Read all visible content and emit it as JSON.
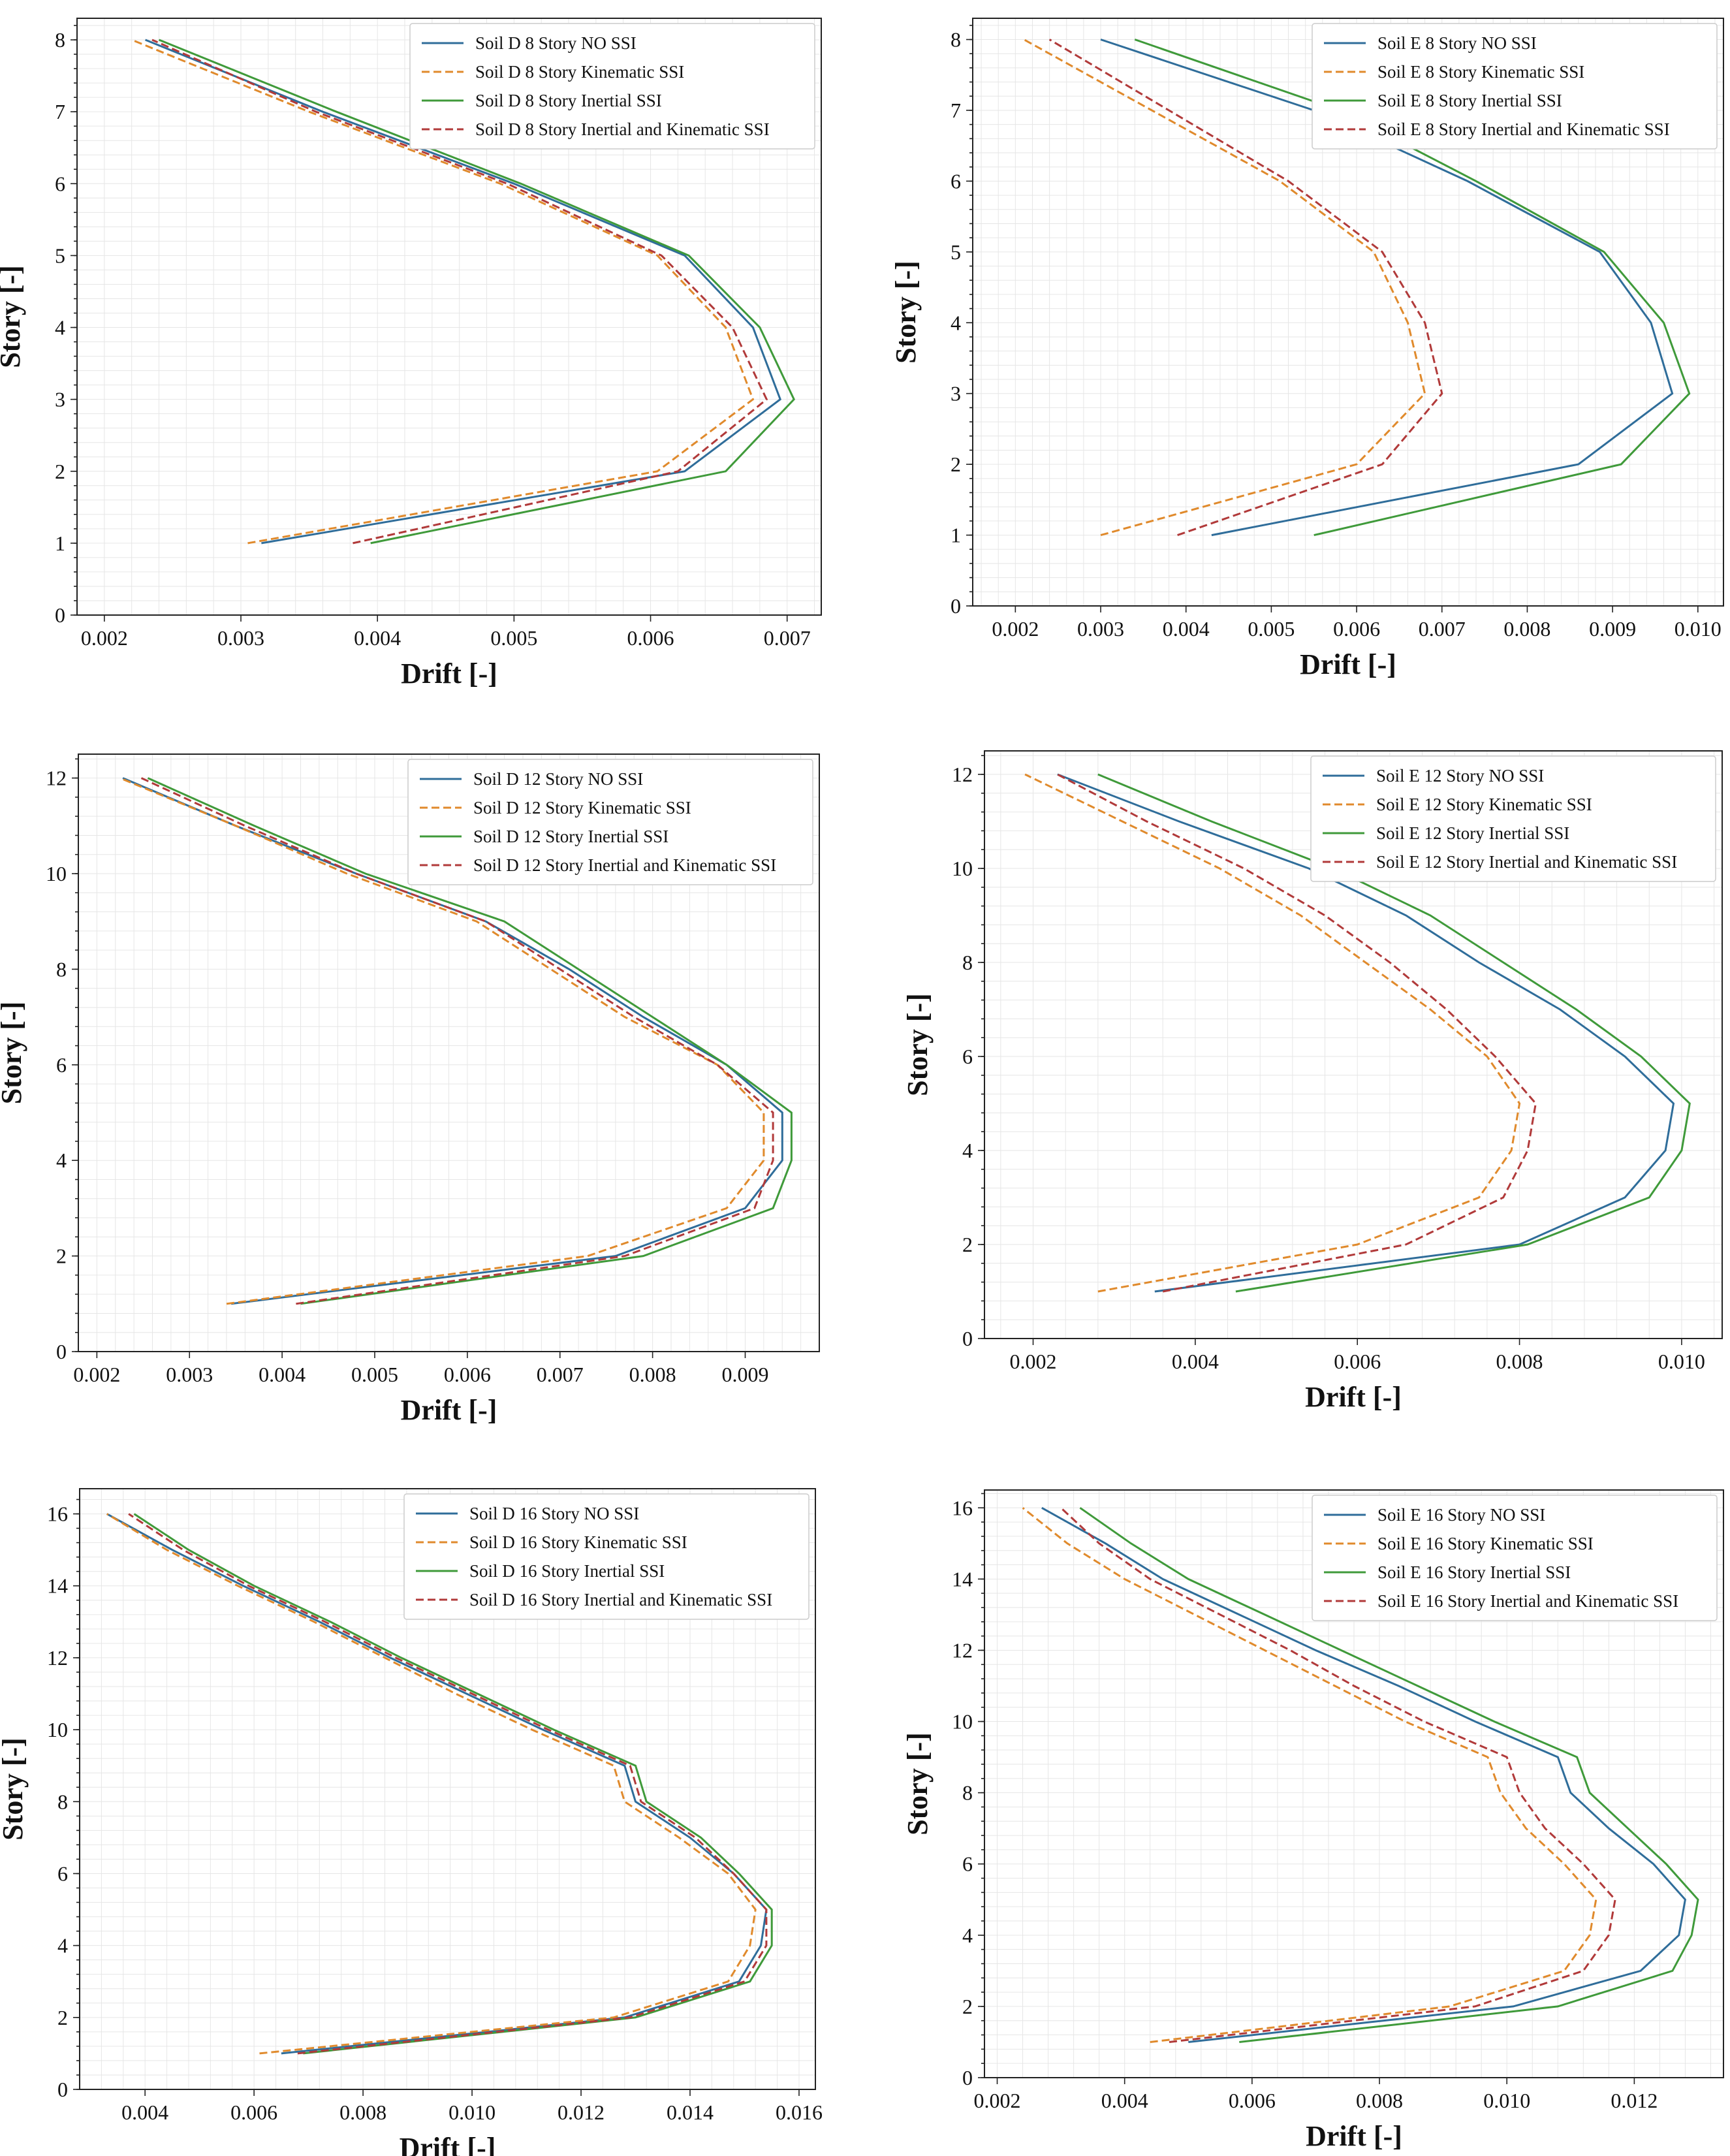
{
  "colors": {
    "no_ssi": "#2f6d9a",
    "kinematic": "#e08a2c",
    "inertial": "#3f9a3a",
    "inertial_kinematic": "#b13a3a"
  },
  "chart_data": [
    {
      "type": "line",
      "panel": "Soil D 8 Story",
      "title": "",
      "xlabel": "Drift [-]",
      "ylabel": "Story [-]",
      "xlim": [
        0.0018,
        0.00725
      ],
      "ylim": [
        0,
        8.3
      ],
      "xticks": [
        0.002,
        0.003,
        0.004,
        0.005,
        0.006,
        0.007
      ],
      "xtick_labels": [
        "0.002",
        "0.003",
        "0.004",
        "0.005",
        "0.006",
        "0.007"
      ],
      "yticks": [
        0,
        1,
        2,
        3,
        4,
        5,
        6,
        7,
        8
      ],
      "ytick_labels": [
        "0",
        "1",
        "2",
        "3",
        "4",
        "5",
        "6",
        "7",
        "8"
      ],
      "grid": true,
      "legend_position": "top-right",
      "y": [
        1,
        2,
        3,
        4,
        5,
        6,
        7,
        8
      ],
      "series": [
        {
          "name": "Soil D 8 Story NO SSI",
          "style": "solid",
          "color_key": "no_ssi",
          "values": [
            0.00315,
            0.00625,
            0.00695,
            0.00675,
            0.00625,
            0.005,
            0.0036,
            0.0023
          ]
        },
        {
          "name": "Soil D 8 Story Kinematic SSI",
          "style": "dashed",
          "color_key": "kinematic",
          "values": [
            0.00305,
            0.00605,
            0.00675,
            0.00655,
            0.00605,
            0.0049,
            0.0035,
            0.0022
          ]
        },
        {
          "name": "Soil D 8 Story Inertial SSI",
          "style": "solid",
          "color_key": "inertial",
          "values": [
            0.00395,
            0.00655,
            0.00705,
            0.0068,
            0.00628,
            0.00505,
            0.0037,
            0.0024
          ]
        },
        {
          "name": "Soil D 8 Story Inertial and Kinematic SSI",
          "style": "dashed",
          "color_key": "inertial_kinematic",
          "values": [
            0.00382,
            0.0062,
            0.00685,
            0.0066,
            0.00608,
            0.00495,
            0.00355,
            0.00235
          ]
        }
      ]
    },
    {
      "type": "line",
      "panel": "Soil E 8 Story",
      "title": "",
      "xlabel": "Drift [-]",
      "ylabel": "Story [-]",
      "xlim": [
        0.0015,
        0.0103
      ],
      "ylim": [
        0,
        8.3
      ],
      "xticks": [
        0.002,
        0.003,
        0.004,
        0.005,
        0.006,
        0.007,
        0.008,
        0.009,
        0.01
      ],
      "xtick_labels": [
        "0.002",
        "0.003",
        "0.004",
        "0.005",
        "0.006",
        "0.007",
        "0.008",
        "0.009",
        "0.010"
      ],
      "yticks": [
        0,
        1,
        2,
        3,
        4,
        5,
        6,
        7,
        8
      ],
      "ytick_labels": [
        "0",
        "1",
        "2",
        "3",
        "4",
        "5",
        "6",
        "7",
        "8"
      ],
      "grid": true,
      "legend_position": "top-right",
      "y": [
        1,
        2,
        3,
        4,
        5,
        6,
        7,
        8
      ],
      "series": [
        {
          "name": "Soil E 8 Story NO SSI",
          "style": "solid",
          "color_key": "no_ssi",
          "values": [
            0.0043,
            0.0086,
            0.0097,
            0.00945,
            0.00885,
            0.0073,
            0.0055,
            0.003
          ]
        },
        {
          "name": "Soil E 8 Story Kinematic SSI",
          "style": "dashed",
          "color_key": "kinematic",
          "values": [
            0.003,
            0.006,
            0.0068,
            0.0066,
            0.0062,
            0.0051,
            0.0036,
            0.0021
          ]
        },
        {
          "name": "Soil E 8 Story Inertial SSI",
          "style": "solid",
          "color_key": "inertial",
          "values": [
            0.0055,
            0.0091,
            0.0099,
            0.0096,
            0.0089,
            0.0074,
            0.0058,
            0.0034
          ]
        },
        {
          "name": "Soil E 8 Story Inertial and Kinematic SSI",
          "style": "dashed",
          "color_key": "inertial_kinematic",
          "values": [
            0.0039,
            0.0063,
            0.007,
            0.0068,
            0.0063,
            0.0052,
            0.0038,
            0.0024
          ]
        }
      ]
    },
    {
      "type": "line",
      "panel": "Soil D 12 Story",
      "title": "",
      "xlabel": "Drift [-]",
      "ylabel": "Story [-]",
      "xlim": [
        0.0018,
        0.0098
      ],
      "ylim": [
        0,
        12.5
      ],
      "xticks": [
        0.002,
        0.003,
        0.004,
        0.005,
        0.006,
        0.007,
        0.008,
        0.009
      ],
      "xtick_labels": [
        "0.002",
        "0.003",
        "0.004",
        "0.005",
        "0.006",
        "0.007",
        "0.008",
        "0.009"
      ],
      "yticks": [
        0,
        2,
        4,
        6,
        8,
        10,
        12
      ],
      "ytick_labels": [
        "0",
        "2",
        "4",
        "6",
        "8",
        "10",
        "12"
      ],
      "grid": true,
      "legend_position": "top-right",
      "y": [
        1,
        2,
        3,
        4,
        5,
        6,
        7,
        8,
        9,
        10,
        11,
        12
      ],
      "series": [
        {
          "name": "Soil D 12 Story NO SSI",
          "style": "solid",
          "color_key": "no_ssi",
          "values": [
            0.00345,
            0.0076,
            0.009,
            0.0094,
            0.0094,
            0.0088,
            0.0079,
            0.0071,
            0.0062,
            0.0048,
            0.0035,
            0.00228
          ]
        },
        {
          "name": "Soil D 12 Story Kinematic SSI",
          "style": "dashed",
          "color_key": "kinematic",
          "values": [
            0.0034,
            0.0073,
            0.0088,
            0.0092,
            0.0092,
            0.0087,
            0.0077,
            0.0069,
            0.0061,
            0.0047,
            0.0035,
            0.00225
          ]
        },
        {
          "name": "Soil D 12 Story Inertial SSI",
          "style": "solid",
          "color_key": "inertial",
          "values": [
            0.0042,
            0.0079,
            0.0093,
            0.0095,
            0.0095,
            0.0088,
            0.008,
            0.0072,
            0.0064,
            0.0049,
            0.0037,
            0.00255
          ]
        },
        {
          "name": "Soil D 12 Story Inertial and Kinematic SSI",
          "style": "dashed",
          "color_key": "inertial_kinematic",
          "values": [
            0.00415,
            0.0077,
            0.0091,
            0.0093,
            0.0093,
            0.0087,
            0.0078,
            0.007,
            0.0062,
            0.0048,
            0.0036,
            0.00248
          ]
        }
      ]
    },
    {
      "type": "line",
      "panel": "Soil E 12 Story",
      "title": "",
      "xlabel": "Drift [-]",
      "ylabel": "Story [-]",
      "xlim": [
        0.0014,
        0.0105
      ],
      "ylim": [
        0,
        12.5
      ],
      "xticks": [
        0.002,
        0.004,
        0.006,
        0.008,
        0.01
      ],
      "xtick_labels": [
        "0.002",
        "0.004",
        "0.006",
        "0.008",
        "0.010"
      ],
      "yticks": [
        0,
        2,
        4,
        6,
        8,
        10,
        12
      ],
      "ytick_labels": [
        "0",
        "2",
        "4",
        "6",
        "8",
        "10",
        "12"
      ],
      "grid": true,
      "legend_position": "top-right",
      "y": [
        1,
        2,
        3,
        4,
        5,
        6,
        7,
        8,
        9,
        10,
        11,
        12
      ],
      "series": [
        {
          "name": "Soil E 12 Story NO SSI",
          "style": "solid",
          "color_key": "no_ssi",
          "values": [
            0.0035,
            0.008,
            0.0093,
            0.0098,
            0.0099,
            0.0093,
            0.0085,
            0.0075,
            0.0066,
            0.0054,
            0.0038,
            0.0023
          ]
        },
        {
          "name": "Soil E 12 Story Kinematic SSI",
          "style": "dashed",
          "color_key": "kinematic",
          "values": [
            0.0028,
            0.006,
            0.0075,
            0.0079,
            0.008,
            0.0076,
            0.0069,
            0.0061,
            0.0053,
            0.0043,
            0.0031,
            0.0019
          ]
        },
        {
          "name": "Soil E 12 Story Inertial SSI",
          "style": "solid",
          "color_key": "inertial",
          "values": [
            0.0045,
            0.0081,
            0.0096,
            0.01,
            0.0101,
            0.0095,
            0.0087,
            0.0078,
            0.0069,
            0.0057,
            0.0042,
            0.0028
          ]
        },
        {
          "name": "Soil E 12 Story Inertial and Kinematic SSI",
          "style": "dashed",
          "color_key": "inertial_kinematic",
          "values": [
            0.0036,
            0.0066,
            0.0078,
            0.0081,
            0.0082,
            0.0077,
            0.0071,
            0.0064,
            0.0056,
            0.0046,
            0.0034,
            0.0023
          ]
        }
      ]
    },
    {
      "type": "line",
      "panel": "Soil D 16 Story",
      "title": "",
      "xlabel": "Drift [-]",
      "ylabel": "Story [-]",
      "xlim": [
        0.0028,
        0.0163
      ],
      "ylim": [
        0,
        16.7
      ],
      "xticks": [
        0.004,
        0.006,
        0.008,
        0.01,
        0.012,
        0.014,
        0.016
      ],
      "xtick_labels": [
        "0.004",
        "0.006",
        "0.008",
        "0.010",
        "0.012",
        "0.014",
        "0.016"
      ],
      "yticks": [
        0,
        2,
        4,
        6,
        8,
        10,
        12,
        14,
        16
      ],
      "ytick_labels": [
        "0",
        "2",
        "4",
        "6",
        "8",
        "10",
        "12",
        "14",
        "16"
      ],
      "grid": true,
      "legend_position": "top-right",
      "y": [
        1,
        2,
        3,
        4,
        5,
        6,
        7,
        8,
        9,
        10,
        11,
        12,
        13,
        14,
        15,
        16
      ],
      "series": [
        {
          "name": "Soil D 16 Story NO SSI",
          "style": "solid",
          "color_key": "no_ssi",
          "values": [
            0.0065,
            0.0128,
            0.0149,
            0.0153,
            0.0154,
            0.0148,
            0.014,
            0.013,
            0.0128,
            0.0113,
            0.0099,
            0.0085,
            0.0072,
            0.0058,
            0.0045,
            0.0033
          ]
        },
        {
          "name": "Soil D 16 Story Kinematic SSI",
          "style": "dashed",
          "color_key": "kinematic",
          "values": [
            0.0061,
            0.0126,
            0.0147,
            0.0151,
            0.0152,
            0.0147,
            0.0138,
            0.0128,
            0.0126,
            0.0111,
            0.0097,
            0.0084,
            0.0071,
            0.0057,
            0.0044,
            0.0033
          ]
        },
        {
          "name": "Soil D 16 Story Inertial SSI",
          "style": "solid",
          "color_key": "inertial",
          "values": [
            0.0069,
            0.013,
            0.0151,
            0.0155,
            0.0155,
            0.0149,
            0.0142,
            0.0132,
            0.013,
            0.0115,
            0.0101,
            0.0087,
            0.0074,
            0.006,
            0.0048,
            0.0038
          ]
        },
        {
          "name": "Soil D 16 Story Inertial and Kinematic SSI",
          "style": "dashed",
          "color_key": "inertial_kinematic",
          "values": [
            0.0068,
            0.0129,
            0.015,
            0.0154,
            0.0154,
            0.0148,
            0.0141,
            0.0131,
            0.0129,
            0.0114,
            0.01,
            0.0086,
            0.0073,
            0.0059,
            0.0047,
            0.0037
          ]
        }
      ]
    },
    {
      "type": "line",
      "panel": "Soil E 16 Story",
      "title": "",
      "xlabel": "Drift [-]",
      "ylabel": "Story [-]",
      "xlim": [
        0.0018,
        0.0134
      ],
      "ylim": [
        0,
        16.5
      ],
      "xticks": [
        0.002,
        0.004,
        0.006,
        0.008,
        0.01,
        0.012
      ],
      "xtick_labels": [
        "0.002",
        "0.004",
        "0.006",
        "0.008",
        "0.010",
        "0.012"
      ],
      "yticks": [
        0,
        2,
        4,
        6,
        8,
        10,
        12,
        14,
        16
      ],
      "ytick_labels": [
        "0",
        "2",
        "4",
        "6",
        "8",
        "10",
        "12",
        "14",
        "16"
      ],
      "grid": true,
      "legend_position": "top-right",
      "y": [
        1,
        2,
        3,
        4,
        5,
        6,
        7,
        8,
        9,
        10,
        11,
        12,
        13,
        14,
        15,
        16
      ],
      "series": [
        {
          "name": "Soil E 16 Story NO SSI",
          "style": "solid",
          "color_key": "no_ssi",
          "values": [
            0.005,
            0.0101,
            0.0121,
            0.0127,
            0.0128,
            0.0123,
            0.0116,
            0.011,
            0.0108,
            0.0095,
            0.0083,
            0.007,
            0.0058,
            0.0046,
            0.0037,
            0.0027
          ]
        },
        {
          "name": "Soil E 16 Story Kinematic SSI",
          "style": "dashed",
          "color_key": "kinematic",
          "values": [
            0.0044,
            0.0091,
            0.0109,
            0.0113,
            0.0114,
            0.0109,
            0.0103,
            0.0099,
            0.0097,
            0.0084,
            0.0073,
            0.0062,
            0.0051,
            0.004,
            0.0031,
            0.0024
          ]
        },
        {
          "name": "Soil E 16 Story Inertial SSI",
          "style": "solid",
          "color_key": "inertial",
          "values": [
            0.0058,
            0.0108,
            0.0126,
            0.0129,
            0.013,
            0.0125,
            0.0119,
            0.0113,
            0.0111,
            0.0098,
            0.0086,
            0.0074,
            0.0062,
            0.005,
            0.0041,
            0.0033
          ]
        },
        {
          "name": "Soil E 16 Story Inertial and Kinematic SSI",
          "style": "dashed",
          "color_key": "inertial_kinematic",
          "values": [
            0.0047,
            0.0095,
            0.0112,
            0.0116,
            0.0117,
            0.0112,
            0.0106,
            0.0102,
            0.01,
            0.0087,
            0.0076,
            0.0066,
            0.0055,
            0.0044,
            0.0036,
            0.003
          ]
        }
      ]
    }
  ]
}
